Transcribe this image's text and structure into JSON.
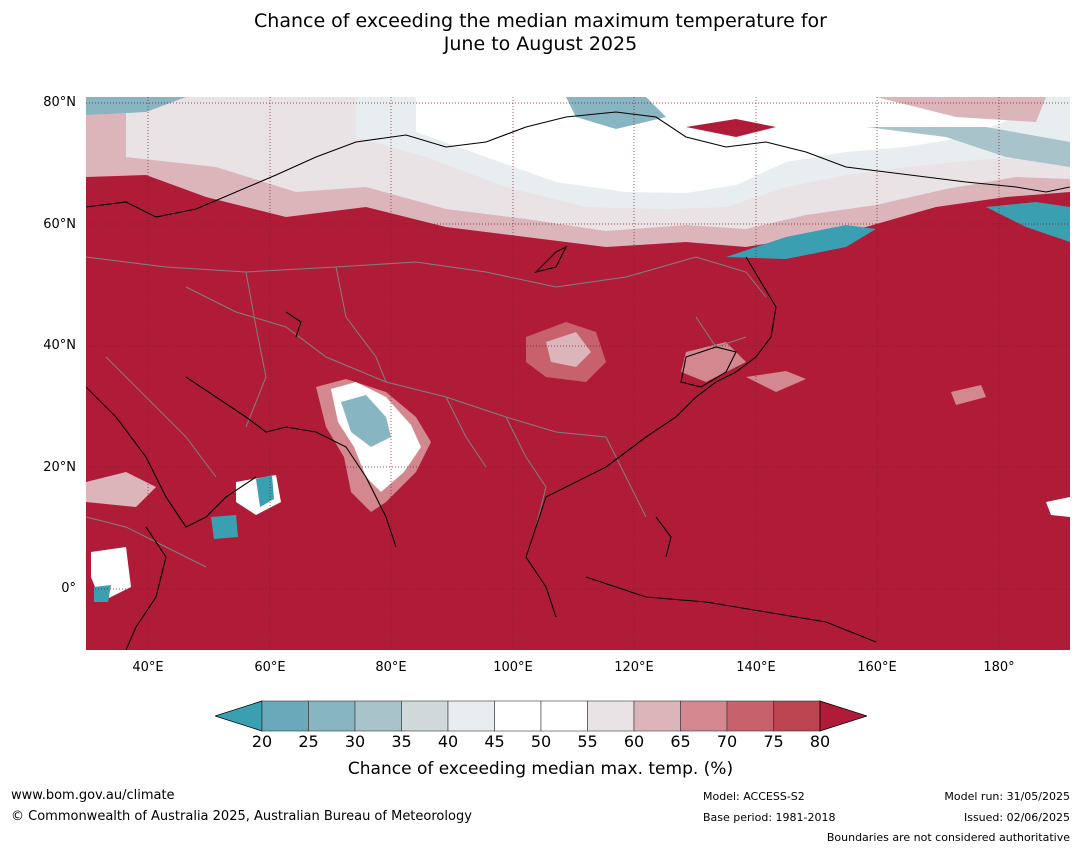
{
  "title_line1": "Chance of exceeding the median maximum temperature for",
  "title_line2": "June to August 2025",
  "lat_labels": [
    "80°N",
    "60°N",
    "40°N",
    "20°N",
    "0°"
  ],
  "lon_labels": [
    "40°E",
    "60°E",
    "80°E",
    "100°E",
    "120°E",
    "140°E",
    "160°E",
    "180°"
  ],
  "colorbar": {
    "ticks": [
      "20",
      "25",
      "30",
      "35",
      "40",
      "45",
      "50",
      "55",
      "60",
      "65",
      "70",
      "75",
      "80"
    ],
    "colors": [
      "#3b9fb2",
      "#6aa9b9",
      "#88b5c2",
      "#a8c4ca",
      "#d0d8da",
      "#e8eef0",
      "#ffffff",
      "#ffffff",
      "#eae3e5",
      "#dcb5bb",
      "#d3888f",
      "#c7616b",
      "#bc4450",
      "#b01c38"
    ],
    "label": "Chance of exceeding median max. temp. (%)"
  },
  "map_colors": {
    "ocean": "#b01c38",
    "grid": "#7a1a2a",
    "coast": "#000000",
    "border": "#808080"
  },
  "footer": {
    "website": "www.bom.gov.au/climate",
    "copyright": "© Commonwealth of Australia 2025, Australian Bureau of Meteorology",
    "model": "Model: ACCESS-S2",
    "base_period": "Base period: 1981-2018",
    "model_run": "Model run: 31/05/2025",
    "issued": "Issued: 02/06/2025",
    "disclaimer": "Boundaries are not considered authoritative"
  }
}
